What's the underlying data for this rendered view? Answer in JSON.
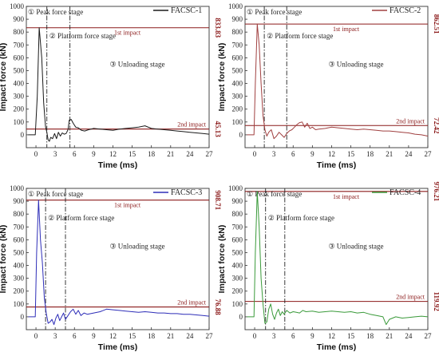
{
  "chart_data": [
    {
      "type": "line",
      "legend": "FACSC-1",
      "color": "#1a1a1a",
      "xlabel": "Time (ms)",
      "ylabel": "Impact force (kN)",
      "xlim": [
        -1.5,
        27
      ],
      "ylim": [
        -100,
        1000
      ],
      "xticks": [
        0,
        3,
        6,
        9,
        12,
        15,
        18,
        21,
        24,
        27
      ],
      "yticks": [
        0,
        100,
        200,
        300,
        400,
        500,
        600,
        700,
        800,
        900,
        1000
      ],
      "first_impact": {
        "value": 833.83,
        "label": "833.83",
        "text": "1st impact"
      },
      "second_impact": {
        "value": 45.13,
        "label": "45.13",
        "text": "2nd impact"
      },
      "stage_lines": [
        1.7,
        5.3
      ],
      "stages": [
        "① Peak force stage",
        "② Platform force stage",
        "③ Unloading stage"
      ],
      "series": [
        {
          "x": [
            -1.2,
            -0.1,
            0.2,
            0.5,
            0.9,
            1.2,
            1.5,
            1.7,
            1.9,
            2.1,
            2.3,
            2.6,
            2.9,
            3.2,
            3.5,
            3.8,
            4.1,
            4.4,
            4.7,
            5.0,
            5.2,
            5.5,
            5.8,
            6.2,
            6.6,
            7.1,
            7.6,
            8.2,
            9.0,
            10.0,
            11.0,
            12.0,
            13.0,
            14.0,
            15.0,
            16.0,
            17.0,
            18.0,
            19.0,
            20.0,
            21.0,
            22.0,
            23.0,
            24.0,
            25.0,
            26.0,
            27.0
          ],
          "y": [
            0,
            0,
            300,
            833.83,
            600,
            250,
            60,
            20,
            -40,
            -50,
            -20,
            -30,
            10,
            -30,
            20,
            -10,
            15,
            5,
            10,
            40,
            115,
            120,
            90,
            60,
            55,
            35,
            30,
            40,
            50,
            45,
            40,
            35,
            45,
            50,
            55,
            60,
            70,
            50,
            45,
            40,
            35,
            30,
            25,
            20,
            15,
            10,
            5
          ]
        }
      ]
    },
    {
      "type": "line",
      "legend": "FACSC-2",
      "color": "#a04040",
      "xlabel": "Time (ms)",
      "ylabel": "Impact force (kN)",
      "xlim": [
        -1.5,
        27
      ],
      "ylim": [
        -100,
        1000
      ],
      "xticks": [
        0,
        3,
        6,
        9,
        12,
        15,
        18,
        21,
        24,
        27
      ],
      "yticks": [
        0,
        100,
        200,
        300,
        400,
        500,
        600,
        700,
        800,
        900,
        1000
      ],
      "first_impact": {
        "value": 862.51,
        "label": "862.51",
        "text": "1st impact"
      },
      "second_impact": {
        "value": 72.42,
        "label": "72.42",
        "text": "2nd impact"
      },
      "stage_lines": [
        1.5,
        5.0
      ],
      "stages": [
        "① Peak force stage",
        "② Platform force stage",
        "③ Unloading stage"
      ],
      "series": [
        {
          "x": [
            -1.2,
            -0.1,
            0.1,
            0.4,
            0.7,
            1.0,
            1.3,
            1.6,
            1.9,
            2.2,
            2.6,
            3.0,
            3.4,
            3.8,
            4.2,
            4.6,
            5.0,
            5.4,
            5.8,
            6.2,
            6.6,
            7.0,
            7.4,
            7.8,
            8.2,
            8.6,
            9.0,
            9.5,
            10.0,
            11.0,
            12.0,
            13.0,
            14.0,
            15.0,
            16.0,
            17.0,
            18.0,
            19.0,
            20.0,
            21.0,
            22.0,
            23.0,
            24.0,
            25.0,
            26.0,
            27.0
          ],
          "y": [
            0,
            0,
            400,
            862.51,
            700,
            400,
            150,
            40,
            -10,
            20,
            40,
            -30,
            -10,
            20,
            0,
            -20,
            10,
            30,
            40,
            60,
            80,
            95,
            100,
            60,
            90,
            50,
            60,
            40,
            45,
            50,
            60,
            55,
            50,
            45,
            40,
            45,
            40,
            35,
            30,
            30,
            25,
            20,
            15,
            5,
            0,
            -10
          ]
        }
      ]
    },
    {
      "type": "line",
      "legend": "FACSC-3",
      "color": "#2e2eb8",
      "xlabel": "Time (ms)",
      "ylabel": "Impact force (kN)",
      "xlim": [
        -1.5,
        27
      ],
      "ylim": [
        -100,
        1000
      ],
      "xticks": [
        0,
        3,
        6,
        9,
        12,
        15,
        18,
        21,
        24,
        27
      ],
      "yticks": [
        0,
        100,
        200,
        300,
        400,
        500,
        600,
        700,
        800,
        900,
        1000
      ],
      "first_impact": {
        "value": 908.71,
        "label": "908.71",
        "text": "1st impact"
      },
      "second_impact": {
        "value": 76.88,
        "label": "76.88",
        "text": "2nd impact"
      },
      "stage_lines": [
        1.5,
        4.6
      ],
      "stages": [
        "① Peak force stage",
        "② Platform force stage",
        "③ Unloading stage"
      ],
      "series": [
        {
          "x": [
            -1.2,
            -0.1,
            0.1,
            0.4,
            0.7,
            1.0,
            1.3,
            1.6,
            1.9,
            2.2,
            2.5,
            2.8,
            3.1,
            3.4,
            3.7,
            4.0,
            4.3,
            4.6,
            5.0,
            5.4,
            5.8,
            6.2,
            6.6,
            7.0,
            7.5,
            8.0,
            9.0,
            10.0,
            11.0,
            12.0,
            13.0,
            14.0,
            15.0,
            16.0,
            17.0,
            18.0,
            19.0,
            20.0,
            21.0,
            22.0,
            23.0,
            24.0,
            25.0,
            26.0,
            27.0
          ],
          "y": [
            0,
            0,
            500,
            908.71,
            600,
            420,
            150,
            30,
            -50,
            -40,
            -20,
            -60,
            -10,
            20,
            -30,
            0,
            30,
            -20,
            10,
            40,
            60,
            20,
            50,
            10,
            30,
            20,
            30,
            40,
            60,
            55,
            50,
            45,
            40,
            35,
            40,
            35,
            30,
            30,
            25,
            25,
            20,
            20,
            15,
            10,
            5
          ]
        }
      ]
    },
    {
      "type": "line",
      "legend": "FACSC-4",
      "color": "#3a9a3a",
      "xlabel": "Time (ms)",
      "ylabel": "Impact force (kN)",
      "xlim": [
        -1.5,
        27
      ],
      "ylim": [
        -100,
        1000
      ],
      "xticks": [
        0,
        3,
        6,
        9,
        12,
        15,
        18,
        21,
        24,
        27
      ],
      "yticks": [
        0,
        100,
        200,
        300,
        400,
        500,
        600,
        700,
        800,
        900,
        1000
      ],
      "first_impact": {
        "value": 976.21,
        "label": "976.21",
        "text": "1st impact"
      },
      "second_impact": {
        "value": 119.92,
        "label": "119.92",
        "text": "2nd impact"
      },
      "stage_lines": [
        1.7,
        4.7
      ],
      "stages": [
        "① Peak force stage",
        "② Platform force stage",
        "③ Unloading stage"
      ],
      "series": [
        {
          "x": [
            -1.2,
            -0.1,
            0.1,
            0.4,
            0.7,
            1.0,
            1.3,
            1.6,
            1.9,
            2.2,
            2.5,
            2.8,
            3.1,
            3.4,
            3.7,
            4.0,
            4.3,
            4.6,
            5.0,
            5.5,
            6.0,
            6.5,
            7.0,
            7.5,
            8.0,
            9.0,
            10.0,
            11.0,
            12.0,
            13.0,
            14.0,
            15.0,
            16.0,
            17.0,
            18.0,
            19.0,
            20.0,
            20.5,
            21.0,
            22.0,
            23.0,
            24.0,
            25.0,
            26.0,
            27.0
          ],
          "y": [
            0,
            0,
            500,
            976.21,
            700,
            300,
            100,
            -50,
            -40,
            60,
            100,
            20,
            -20,
            30,
            60,
            10,
            40,
            20,
            50,
            30,
            40,
            35,
            30,
            50,
            40,
            45,
            35,
            40,
            45,
            40,
            35,
            40,
            30,
            35,
            20,
            10,
            0,
            -60,
            -20,
            0,
            -10,
            -5,
            0,
            5,
            0
          ]
        }
      ]
    }
  ]
}
